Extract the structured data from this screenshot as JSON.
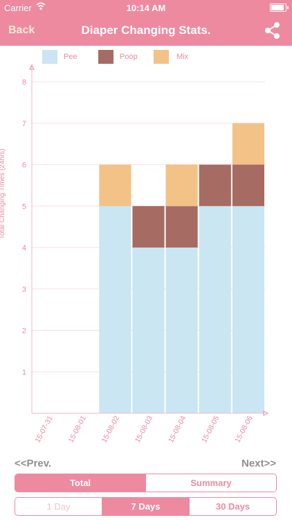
{
  "status": {
    "carrier": "Carrier",
    "time": "10:14 AM",
    "battery_level": 0.9
  },
  "nav": {
    "back": "Back",
    "title": "Diaper Changing Stats.",
    "share_icon": "share-icon"
  },
  "legend": [
    {
      "label": "Pee",
      "color": "#c9e6f2"
    },
    {
      "label": "Poop",
      "color": "#a66b62"
    },
    {
      "label": "Mix",
      "color": "#f2c287"
    }
  ],
  "chart_data": {
    "type": "bar",
    "stacked": true,
    "categories": [
      "15-07-31",
      "15-08-01",
      "15-08-02",
      "15-08-03",
      "15-08-04",
      "15-08-05",
      "15-08-06"
    ],
    "series": [
      {
        "name": "Pee",
        "values": [
          0,
          0,
          5,
          4,
          4,
          5,
          5
        ],
        "color": "#c9e6f2"
      },
      {
        "name": "Poop",
        "values": [
          0,
          0,
          0,
          1,
          1,
          1,
          1
        ],
        "color": "#a66b62"
      },
      {
        "name": "Mix",
        "values": [
          0,
          0,
          1,
          0,
          1,
          0,
          1
        ],
        "color": "#f2c287"
      }
    ],
    "ylabel": "Total Changing Times (24hrs)",
    "yticks": [
      1,
      2,
      3,
      4,
      5,
      6,
      7,
      8
    ],
    "ylim": [
      0,
      8
    ],
    "grid": true,
    "legend_position": "top"
  },
  "pager": {
    "prev": "<<Prev.",
    "next": "Next>>"
  },
  "mode_tabs": [
    {
      "label": "Total",
      "active": true
    },
    {
      "label": "Summary",
      "active": false
    }
  ],
  "range_tabs": [
    {
      "label": "1 Day",
      "active": false,
      "disabled": true
    },
    {
      "label": "7 Days",
      "active": true,
      "disabled": false
    },
    {
      "label": "30 Days",
      "active": false,
      "disabled": false
    }
  ]
}
